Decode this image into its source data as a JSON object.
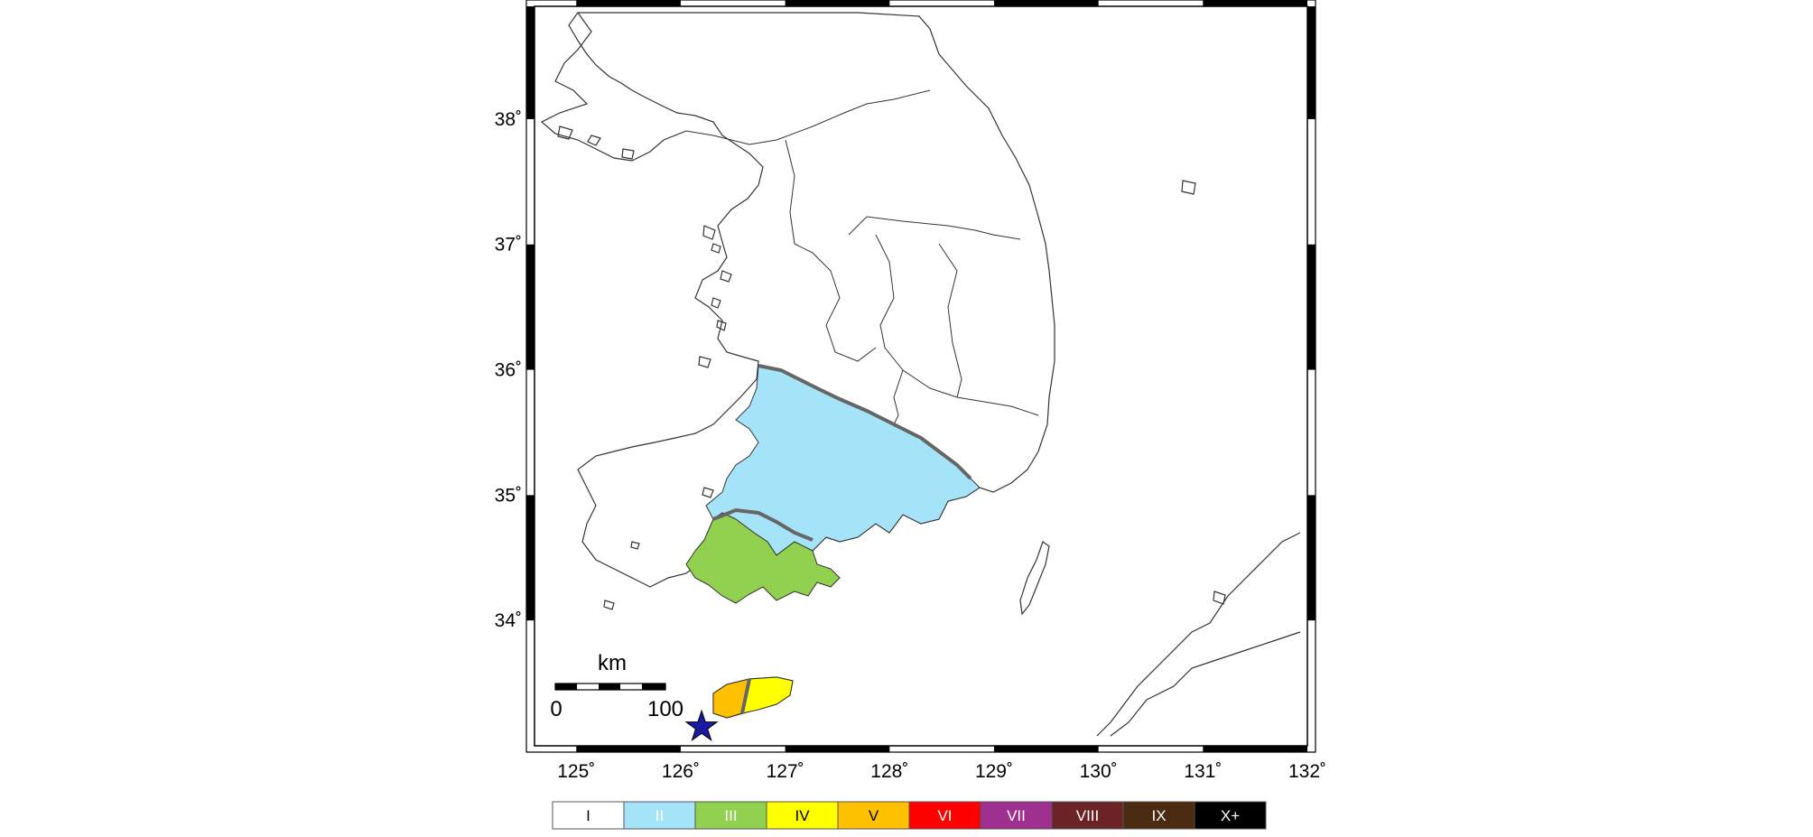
{
  "map": {
    "lat_ticks": [
      {
        "value": 38,
        "label": "38˚"
      },
      {
        "value": 37,
        "label": "37˚"
      },
      {
        "value": 36,
        "label": "36˚"
      },
      {
        "value": 35,
        "label": "35˚"
      },
      {
        "value": 34,
        "label": "34˚"
      }
    ],
    "lon_ticks": [
      {
        "value": 125,
        "label": "125˚"
      },
      {
        "value": 126,
        "label": "126˚"
      },
      {
        "value": 127,
        "label": "127˚"
      },
      {
        "value": 128,
        "label": "128˚"
      },
      {
        "value": 129,
        "label": "129˚"
      },
      {
        "value": 130,
        "label": "130˚"
      },
      {
        "value": 131,
        "label": "131˚"
      },
      {
        "value": 132,
        "label": "132˚"
      }
    ],
    "epicenter": {
      "lon": 126.2,
      "lat": 33.15,
      "color": "#1a1aa0"
    },
    "scale_bar": {
      "unit": "km",
      "start_label": "0",
      "end_label": "100"
    }
  },
  "legend": {
    "items": [
      {
        "label": "I",
        "color": "#ffffff",
        "text_color": "#000000"
      },
      {
        "label": "II",
        "color": "#a5e3f9",
        "text_color": "#ffffff"
      },
      {
        "label": "III",
        "color": "#92d050",
        "text_color": "#ffffff"
      },
      {
        "label": "IV",
        "color": "#ffff00",
        "text_color": "#000000"
      },
      {
        "label": "V",
        "color": "#ffc000",
        "text_color": "#000000"
      },
      {
        "label": "VI",
        "color": "#ff0000",
        "text_color": "#ffffff"
      },
      {
        "label": "VII",
        "color": "#a03090",
        "text_color": "#ffffff"
      },
      {
        "label": "VIII",
        "color": "#6b2326",
        "text_color": "#ffffff"
      },
      {
        "label": "IX",
        "color": "#4a2a10",
        "text_color": "#ffffff"
      },
      {
        "label": "X+",
        "color": "#000000",
        "text_color": "#ffffff"
      }
    ]
  },
  "colors": {
    "zone_ii": "#a5e3f9",
    "zone_iii": "#92d050",
    "zone_iv": "#ffff00",
    "zone_v": "#ffc000",
    "contour": "#666666",
    "coast": "#333333"
  }
}
